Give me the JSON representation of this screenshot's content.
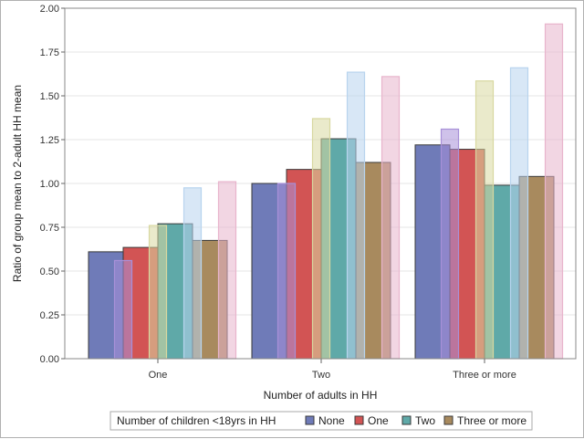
{
  "chart_data": {
    "type": "bar",
    "xlabel": "Number of adults in HH",
    "ylabel": "Ratio of group mean to 2-adult HH mean",
    "categories": [
      "One",
      "Two",
      "Three or more"
    ],
    "ylim": [
      0,
      2.0
    ],
    "yticks": [
      "0.00",
      "0.25",
      "0.50",
      "0.75",
      "1.00",
      "1.25",
      "1.50",
      "1.75",
      "2.00"
    ],
    "grid": true,
    "legend": {
      "title": "Number of children <18yrs in HH",
      "placement": "bottom"
    },
    "series": [
      {
        "name": "None",
        "color": "#6f7bb8",
        "values": [
          0.61,
          1.0,
          1.22
        ]
      },
      {
        "name": "One",
        "color": "#d25454",
        "values": [
          0.635,
          1.08,
          1.195
        ]
      },
      {
        "name": "Two",
        "color": "#5fa9a8",
        "values": [
          0.77,
          1.255,
          0.99
        ]
      },
      {
        "name": "Three or more",
        "color": "#a88a5e",
        "values": [
          0.675,
          1.12,
          1.04
        ]
      }
    ],
    "overlay_series": [
      {
        "color": "#a890d8",
        "values": [
          0.56,
          1.0,
          1.31
        ]
      },
      {
        "color": "#d8d8a0",
        "values": [
          0.76,
          1.37,
          1.585
        ]
      },
      {
        "color": "#b8d4ee",
        "values": [
          0.975,
          1.635,
          1.66
        ]
      },
      {
        "color": "#e8b4cc",
        "values": [
          1.01,
          1.61,
          1.91
        ]
      }
    ]
  }
}
